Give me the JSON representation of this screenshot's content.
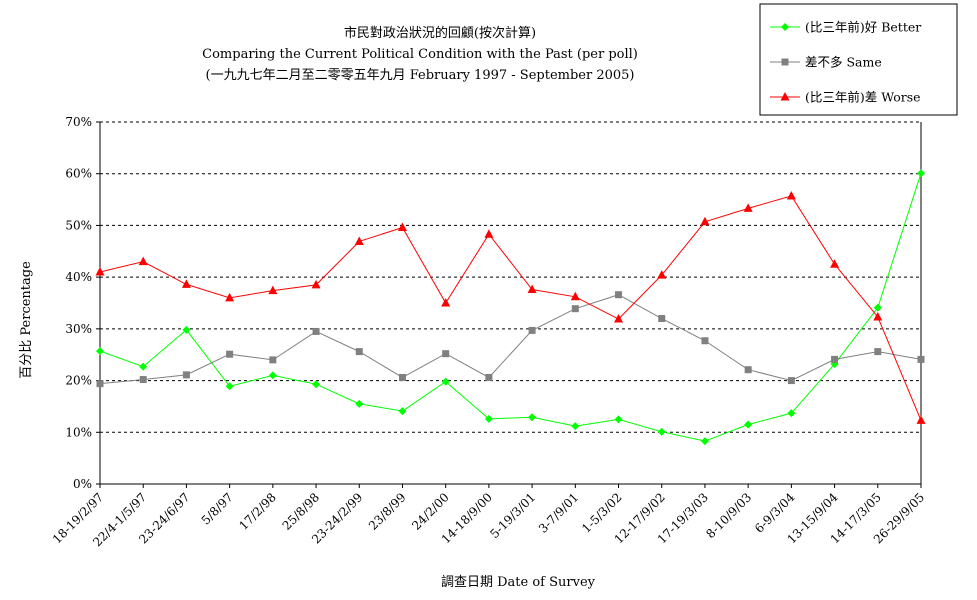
{
  "chart_data": {
    "type": "line",
    "title": "市民對政治狀況的回顧(按次計算)",
    "subtitle": "Comparing the Current Political Condition with the Past  (per poll)",
    "subtitle2": "(一九九七年二月至二零零五年九月 February 1997 - September 2005)",
    "xlabel": "調查日期 Date of Survey",
    "ylabel": "百分比 Percentage",
    "ylim": [
      0,
      70
    ],
    "yticks": [
      "0%",
      "10%",
      "20%",
      "30%",
      "40%",
      "50%",
      "60%",
      "70%"
    ],
    "grid": true,
    "legend_position": "top-right",
    "categories": [
      "18-19/2/97",
      "22/4-1/5/97",
      "23-24/6/97",
      "5/8/97",
      "17/2/98",
      "25/8/98",
      "23-24/2/99",
      "23/8/99",
      "24/2/00",
      "14-18/9/00",
      "5-19/3/01",
      "3-7/9/01",
      "1-5/3/02",
      "12-17/9/02",
      "17-19/3/03",
      "8-10/9/03",
      "6-9/3/04",
      "13-15/9/04",
      "14-17/3/05",
      "26-29/9/05"
    ],
    "series": [
      {
        "name": "(比三年前)好 Better",
        "color": "#00ff00",
        "marker": "diamond",
        "values": [
          25.7,
          22.7,
          29.8,
          18.9,
          21.0,
          19.3,
          15.5,
          14.1,
          19.8,
          12.6,
          12.9,
          11.2,
          12.5,
          10.1,
          8.3,
          11.5,
          13.7,
          23.2,
          34.1,
          60.1
        ]
      },
      {
        "name": "差不多 Same",
        "color": "#808080",
        "marker": "square",
        "values": [
          19.4,
          20.2,
          21.1,
          25.1,
          24.0,
          29.5,
          25.6,
          20.6,
          25.2,
          20.6,
          29.7,
          33.9,
          36.6,
          32.0,
          27.7,
          22.1,
          20.0,
          24.1,
          25.6,
          24.1
        ]
      },
      {
        "name": "(比三年前)差 Worse",
        "color": "#ff0000",
        "marker": "triangle",
        "values": [
          41.0,
          43.0,
          38.6,
          36.0,
          37.4,
          38.5,
          46.9,
          49.6,
          35.0,
          48.3,
          37.6,
          36.2,
          31.9,
          40.4,
          50.7,
          53.3,
          55.7,
          42.5,
          32.3,
          12.3
        ]
      }
    ]
  }
}
